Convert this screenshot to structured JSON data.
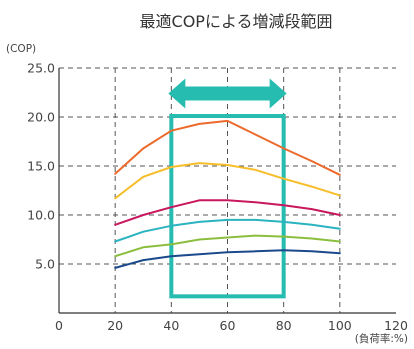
{
  "chart_data": {
    "type": "line",
    "title": "最適COPによる増減段範囲",
    "ylabel": "(COP)",
    "xlabel": "(負荷率:%)",
    "xlim": [
      0,
      120
    ],
    "ylim": [
      0,
      25
    ],
    "xticks": [
      "0",
      "20",
      "40",
      "60",
      "80",
      "100",
      "120"
    ],
    "yticks": [
      "5.0",
      "10.0",
      "15.0",
      "20.0",
      "25.0"
    ],
    "x_grid_values": [
      20,
      40,
      60,
      80,
      100
    ],
    "y_grid_values": [
      5,
      10,
      15,
      20,
      25
    ],
    "x": [
      20,
      30,
      40,
      50,
      60,
      70,
      80,
      90,
      100
    ],
    "series": [
      {
        "color": "#ec6a2c",
        "values": [
          14.2,
          16.8,
          18.6,
          19.3,
          19.6,
          18.2,
          16.8,
          15.5,
          14.1
        ]
      },
      {
        "color": "#f7be2b",
        "values": [
          11.7,
          13.9,
          14.9,
          15.3,
          15.1,
          14.6,
          13.7,
          12.9,
          12.0
        ]
      },
      {
        "color": "#c8175d",
        "values": [
          9.0,
          10.0,
          10.8,
          11.5,
          11.5,
          11.3,
          11.0,
          10.6,
          10.0
        ]
      },
      {
        "color": "#2bb3c0",
        "values": [
          7.3,
          8.3,
          8.9,
          9.3,
          9.5,
          9.5,
          9.3,
          9.0,
          8.6
        ]
      },
      {
        "color": "#8bbe3f",
        "values": [
          5.8,
          6.7,
          7.0,
          7.5,
          7.7,
          7.9,
          7.8,
          7.6,
          7.3
        ]
      },
      {
        "color": "#1a4a8c",
        "values": [
          4.6,
          5.4,
          5.8,
          6.0,
          6.2,
          6.3,
          6.4,
          6.3,
          6.1
        ]
      }
    ],
    "highlight_range": {
      "x_from": 40,
      "x_to": 80,
      "y_from": 1.7,
      "y_to": 20.1,
      "color": "#26bcb0"
    },
    "arrow_range": {
      "x_from": 40,
      "x_to": 80,
      "y": 22.4,
      "color": "#26bcb0"
    }
  }
}
